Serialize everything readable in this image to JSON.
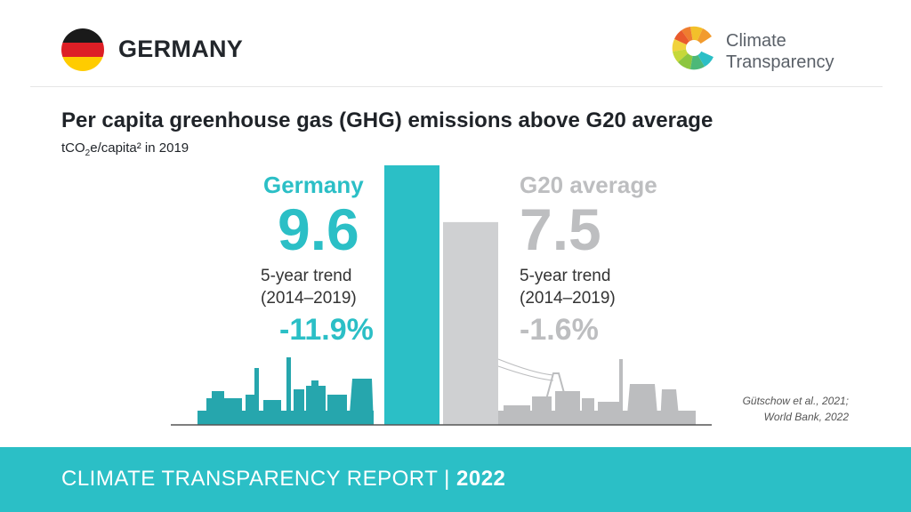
{
  "header": {
    "country": "GERMANY",
    "logo_line1": "Climate",
    "logo_line2": "Transparency"
  },
  "colors": {
    "germany": "#2bbfc6",
    "g20": "#cfd0d2",
    "skyline_left": "#26a6ad",
    "skyline_right": "#bcbdbf"
  },
  "chart_data": {
    "type": "bar",
    "title": "Per capita greenhouse gas (GHG) emissions above G20 average",
    "subtitle_main": "tCO",
    "subtitle_sub": "2",
    "subtitle_rest": "e/capita² in 2019",
    "categories": [
      "Germany",
      "G20 average"
    ],
    "values": [
      9.6,
      7.5
    ],
    "value_labels": [
      "9.6",
      "7.5"
    ],
    "trend_label_1": "5-year trend",
    "trend_label_2": "(2014–2019)",
    "trends": [
      "-11.9%",
      "-1.6%"
    ],
    "ylim": [
      0,
      9.6
    ]
  },
  "source_line1": "Gütschow et al., 2021;",
  "source_line2": "World Bank, 2022",
  "footer": {
    "text": "CLIMATE TRANSPARENCY REPORT",
    "separator": "|",
    "year": "2022"
  }
}
